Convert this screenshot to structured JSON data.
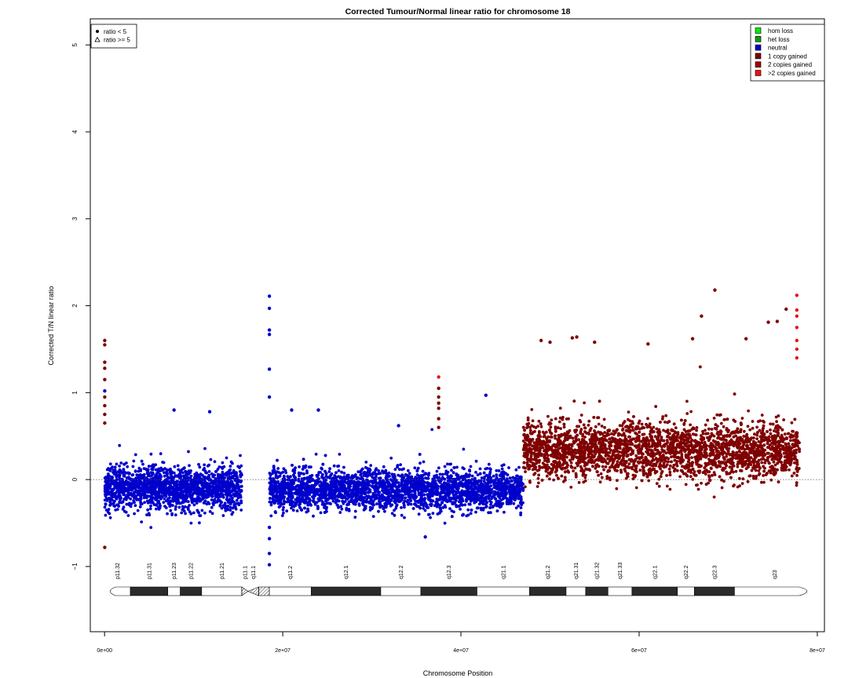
{
  "chart_data": {
    "type": "scatter",
    "title": "Corrected Tumour/Normal linear ratio for chromosome  18",
    "xlabel": "Chromosome Position",
    "ylabel": "Corrected T/N linear ratio",
    "xlim": [
      -1600000,
      80800000
    ],
    "ylim": [
      -1.75,
      5.3
    ],
    "x_ticks": [
      {
        "value": 0,
        "label": "0e+00"
      },
      {
        "value": 20000000,
        "label": "2e+07"
      },
      {
        "value": 40000000,
        "label": "4e+07"
      },
      {
        "value": 60000000,
        "label": "6e+07"
      },
      {
        "value": 80000000,
        "label": "8e+07"
      }
    ],
    "y_ticks": [
      {
        "value": -1,
        "label": "−1"
      },
      {
        "value": 0,
        "label": "0"
      },
      {
        "value": 1,
        "label": "1"
      },
      {
        "value": 2,
        "label": "2"
      },
      {
        "value": 3,
        "label": "3"
      },
      {
        "value": 4,
        "label": "4"
      },
      {
        "value": 5,
        "label": "5"
      }
    ],
    "reference_line": 0,
    "shape_legend": {
      "position": "top-left",
      "items": [
        {
          "label": "ratio < 5",
          "shape": "circle"
        },
        {
          "label": "ratio >= 5",
          "shape": "triangle"
        }
      ]
    },
    "legend": {
      "position": "top-right",
      "items": [
        {
          "label": "hom loss",
          "color": "#00ee00"
        },
        {
          "label": "het loss",
          "color": "#00a000"
        },
        {
          "label": "neutral",
          "color": "#0000cc"
        },
        {
          "label": "1 copy gained",
          "color": "#7f0000"
        },
        {
          "label": "2 copies gained",
          "color": "#a00000"
        },
        {
          "label": ">2 copies gained",
          "color": "#ee1111"
        }
      ]
    },
    "segments": [
      {
        "state": "neutral",
        "color": "#0000cc",
        "x_start": 0,
        "x_end": 15400000,
        "center": -0.1,
        "spread": 0.24
      },
      {
        "state": "neutral",
        "color": "#0000cc",
        "x_start": 18500000,
        "x_end": 47000000,
        "center": -0.12,
        "spread": 0.23
      },
      {
        "state": "1 copy gained",
        "color": "#7f0000",
        "x_start": 47000000,
        "x_end": 78000000,
        "center": 0.33,
        "spread": 0.32
      }
    ],
    "highlight_points": [
      {
        "x": 20000,
        "y": 1.6,
        "state": "1 copy gained"
      },
      {
        "x": 20000,
        "y": 1.55,
        "state": "1 copy gained"
      },
      {
        "x": 20000,
        "y": 1.35,
        "state": "1 copy gained"
      },
      {
        "x": 20000,
        "y": 1.28,
        "state": "1 copy gained"
      },
      {
        "x": 20000,
        "y": 1.15,
        "state": "1 copy gained"
      },
      {
        "x": 20000,
        "y": 1.02,
        "state": "neutral"
      },
      {
        "x": 20000,
        "y": 0.95,
        "state": "1 copy gained"
      },
      {
        "x": 20000,
        "y": 0.85,
        "state": "1 copy gained"
      },
      {
        "x": 20000,
        "y": 0.75,
        "state": "1 copy gained"
      },
      {
        "x": 20000,
        "y": 0.65,
        "state": "1 copy gained"
      },
      {
        "x": 20000,
        "y": -0.78,
        "state": "1 copy gained"
      },
      {
        "x": 18500000,
        "y": 2.11,
        "state": "neutral"
      },
      {
        "x": 18500000,
        "y": 1.97,
        "state": "neutral"
      },
      {
        "x": 18500000,
        "y": 1.72,
        "state": "neutral"
      },
      {
        "x": 18500000,
        "y": 1.67,
        "state": "neutral"
      },
      {
        "x": 18500000,
        "y": 1.27,
        "state": "neutral"
      },
      {
        "x": 18500000,
        "y": 0.95,
        "state": "neutral"
      },
      {
        "x": 18500000,
        "y": -0.55,
        "state": "neutral"
      },
      {
        "x": 18500000,
        "y": -0.68,
        "state": "neutral"
      },
      {
        "x": 18500000,
        "y": -0.85,
        "state": "neutral"
      },
      {
        "x": 18500000,
        "y": -0.98,
        "state": "neutral"
      },
      {
        "x": 37500000,
        "y": 1.18,
        "state": ">2 copies gained"
      },
      {
        "x": 37500000,
        "y": 1.05,
        "state": "1 copy gained"
      },
      {
        "x": 37500000,
        "y": 0.95,
        "state": "1 copy gained"
      },
      {
        "x": 37500000,
        "y": 0.88,
        "state": "1 copy gained"
      },
      {
        "x": 37500000,
        "y": 0.82,
        "state": "1 copy gained"
      },
      {
        "x": 37500000,
        "y": 0.7,
        "state": "1 copy gained"
      },
      {
        "x": 37500000,
        "y": 0.6,
        "state": "1 copy gained"
      },
      {
        "x": 68500000,
        "y": 2.18,
        "state": "1 copy gained"
      },
      {
        "x": 67000000,
        "y": 1.88,
        "state": "1 copy gained"
      },
      {
        "x": 77700000,
        "y": 2.12,
        "state": ">2 copies gained"
      },
      {
        "x": 77700000,
        "y": 1.95,
        "state": ">2 copies gained"
      },
      {
        "x": 77700000,
        "y": 1.88,
        "state": ">2 copies gained"
      },
      {
        "x": 77700000,
        "y": 1.75,
        "state": ">2 copies gained"
      },
      {
        "x": 77700000,
        "y": 1.6,
        "state": ">2 copies gained"
      },
      {
        "x": 77700000,
        "y": 1.5,
        "state": ">2 copies gained"
      },
      {
        "x": 77700000,
        "y": 1.4,
        "state": ">2 copies gained"
      },
      {
        "x": 76500000,
        "y": 1.96,
        "state": "1 copy gained"
      },
      {
        "x": 75500000,
        "y": 1.82,
        "state": "1 copy gained"
      },
      {
        "x": 74500000,
        "y": 1.81,
        "state": "1 copy gained"
      },
      {
        "x": 72000000,
        "y": 1.62,
        "state": "1 copy gained"
      },
      {
        "x": 66000000,
        "y": 1.62,
        "state": "1 copy gained"
      },
      {
        "x": 61000000,
        "y": 1.56,
        "state": "1 copy gained"
      },
      {
        "x": 55000000,
        "y": 1.58,
        "state": "1 copy gained"
      },
      {
        "x": 53000000,
        "y": 1.64,
        "state": "1 copy gained"
      },
      {
        "x": 52500000,
        "y": 1.63,
        "state": "1 copy gained"
      },
      {
        "x": 50000000,
        "y": 1.58,
        "state": "1 copy gained"
      },
      {
        "x": 49000000,
        "y": 1.6,
        "state": "1 copy gained"
      },
      {
        "x": 42800000,
        "y": 0.97,
        "state": "neutral"
      },
      {
        "x": 36000000,
        "y": -0.66,
        "state": "neutral"
      },
      {
        "x": 7800000,
        "y": 0.8,
        "state": "neutral"
      },
      {
        "x": 11800000,
        "y": 0.78,
        "state": "neutral"
      },
      {
        "x": 21000000,
        "y": 0.8,
        "state": "neutral"
      },
      {
        "x": 24000000,
        "y": 0.8,
        "state": "neutral"
      },
      {
        "x": 33000000,
        "y": 0.62,
        "state": "neutral"
      }
    ],
    "ideogram": {
      "bands": [
        {
          "name": "p11.32",
          "start": 0,
          "end": 2900000,
          "stain": "gneg"
        },
        {
          "name": "p11.31",
          "start": 2900000,
          "end": 7100000,
          "stain": "gpos"
        },
        {
          "name": "p11.23",
          "start": 7100000,
          "end": 8500000,
          "stain": "gneg"
        },
        {
          "name": "p11.22",
          "start": 8500000,
          "end": 10900000,
          "stain": "gpos"
        },
        {
          "name": "p11.21",
          "start": 10900000,
          "end": 15400000,
          "stain": "gneg"
        },
        {
          "name": "p11.1",
          "start": 15400000,
          "end": 16100000,
          "stain": "acen"
        },
        {
          "name": "q11.1",
          "start": 16100000,
          "end": 17300000,
          "stain": "acen"
        },
        {
          "name": "",
          "start": 17300000,
          "end": 18500000,
          "stain": "gvar"
        },
        {
          "name": "q11.2",
          "start": 18500000,
          "end": 23200000,
          "stain": "gneg"
        },
        {
          "name": "q12.1",
          "start": 23200000,
          "end": 31000000,
          "stain": "gpos"
        },
        {
          "name": "q12.2",
          "start": 31000000,
          "end": 35500000,
          "stain": "gneg"
        },
        {
          "name": "q12.3",
          "start": 35500000,
          "end": 41800000,
          "stain": "gpos"
        },
        {
          "name": "q21.1",
          "start": 41800000,
          "end": 47700000,
          "stain": "gneg"
        },
        {
          "name": "q21.2",
          "start": 47700000,
          "end": 51800000,
          "stain": "gpos"
        },
        {
          "name": "q21.31",
          "start": 51800000,
          "end": 54000000,
          "stain": "gneg"
        },
        {
          "name": "q21.32",
          "start": 54000000,
          "end": 56500000,
          "stain": "gpos"
        },
        {
          "name": "q21.33",
          "start": 56500000,
          "end": 59200000,
          "stain": "gneg"
        },
        {
          "name": "q22.1",
          "start": 59200000,
          "end": 64300000,
          "stain": "gpos"
        },
        {
          "name": "q22.2",
          "start": 64300000,
          "end": 66200000,
          "stain": "gneg"
        },
        {
          "name": "q22.3",
          "start": 66200000,
          "end": 70700000,
          "stain": "gpos"
        },
        {
          "name": "q23",
          "start": 70700000,
          "end": 76200000,
          "stain": "gneg"
        }
      ]
    }
  }
}
